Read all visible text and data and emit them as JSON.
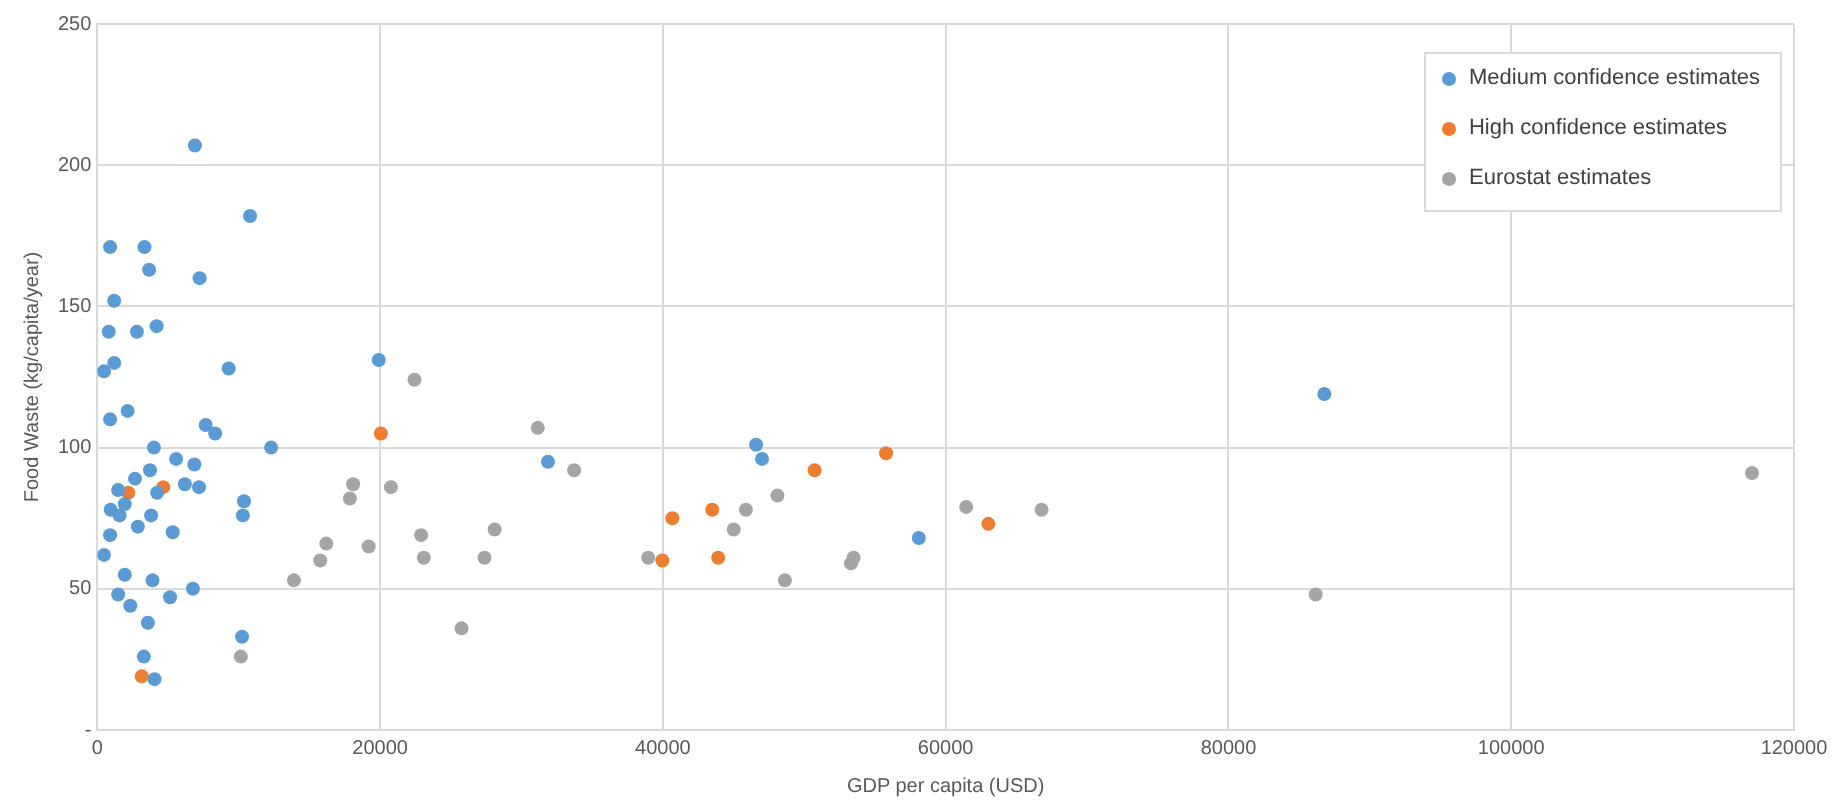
{
  "chart_data": {
    "type": "scatter",
    "xlabel": "GDP per capita (USD)",
    "ylabel": "Food Waste (kg/capita/year)",
    "xlim": [
      0,
      120000
    ],
    "xticks": [
      0,
      20000,
      40000,
      60000,
      80000,
      100000,
      120000
    ],
    "ylim": [
      0,
      250
    ],
    "yticks": [
      {
        "value": 0,
        "label": "-"
      },
      50,
      100,
      150,
      200,
      250
    ],
    "grid": true,
    "legend": "top right",
    "marker": "circle",
    "series": [
      {
        "name": "Medium confidence estimates",
        "color": "#5b9bd5",
        "x": [
          6900,
          10800,
          900,
          3330,
          3660,
          7230,
          1190,
          800,
          2800,
          4190,
          470,
          1190,
          9290,
          19900,
          900,
          2140,
          7660,
          8330,
          12290,
          4000,
          5570,
          6860,
          3720,
          2660,
          6190,
          7190,
          1470,
          4230,
          1940,
          940,
          1570,
          3800,
          10370,
          10290,
          900,
          2860,
          5330,
          470,
          1940,
          3900,
          1470,
          5140,
          6760,
          2330,
          3570,
          10230,
          3290,
          4040,
          31870,
          46590,
          47010,
          58100,
          86780
        ],
        "values": [
          207,
          182,
          171,
          171,
          163,
          160,
          152,
          141,
          141,
          143,
          127,
          130,
          128,
          131,
          110,
          113,
          108,
          105,
          100,
          100,
          96,
          94,
          92,
          89,
          87,
          86,
          85,
          84,
          80,
          78,
          76,
          76,
          81,
          76,
          69,
          72,
          70,
          62,
          55,
          53,
          48,
          47,
          50,
          44,
          38,
          33,
          26,
          18,
          95,
          101,
          96,
          68,
          119
        ]
      },
      {
        "name": "High confidence estimates",
        "color": "#ed7d31",
        "x": [
          2190,
          4660,
          3140,
          20050,
          40670,
          39960,
          43490,
          43910,
          50730,
          55780,
          63020
        ],
        "values": [
          84,
          86,
          19,
          105,
          75,
          60,
          78,
          61,
          92,
          98,
          73
        ]
      },
      {
        "name": "Eurostat estimates",
        "color": "#a5a5a5",
        "x": [
          10150,
          22430,
          18090,
          17860,
          20760,
          19190,
          22900,
          23090,
          28100,
          27380,
          25760,
          31150,
          33720,
          38960,
          45010,
          45870,
          48100,
          48630,
          53490,
          53300,
          61450,
          66780,
          16190,
          15760,
          13900,
          86170,
          117030
        ],
        "values": [
          26,
          124,
          87,
          82,
          86,
          65,
          69,
          61,
          71,
          61,
          36,
          107,
          92,
          61,
          71,
          78,
          83,
          53,
          61,
          59,
          79,
          78,
          66,
          60,
          53,
          48,
          91
        ]
      }
    ]
  }
}
